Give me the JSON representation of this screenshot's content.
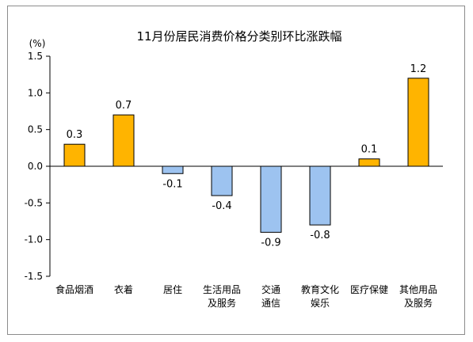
{
  "chart_data": {
    "type": "bar",
    "title": "11月份居民消费价格分类别环比涨跌幅",
    "ylabel": "(%)",
    "xlabel": "",
    "ylim": [
      -1.5,
      1.5
    ],
    "yticks": [
      "1.5",
      "1.0",
      "0.5",
      "0.0",
      "-0.5",
      "-1.0",
      "-1.5"
    ],
    "ytick_values": [
      1.5,
      1.0,
      0.5,
      0.0,
      -0.5,
      -1.0,
      -1.5
    ],
    "grid": false,
    "categories": [
      [
        "食品烟酒"
      ],
      [
        "衣着"
      ],
      [
        "居住"
      ],
      [
        "生活用品",
        "及服务"
      ],
      [
        "交通",
        "通信"
      ],
      [
        "教育文化",
        "娱乐"
      ],
      [
        "医疗保健"
      ],
      [
        "其他用品",
        "及服务"
      ]
    ],
    "values": [
      0.3,
      0.7,
      -0.1,
      -0.4,
      -0.9,
      -0.8,
      0.1,
      1.2
    ],
    "data_labels": [
      "0.3",
      "0.7",
      "-0.1",
      "-0.4",
      "-0.9",
      "-0.8",
      "0.1",
      "1.2"
    ],
    "colors": {
      "positive": "#FFB400",
      "negative": "#9DC3F0",
      "bar_outline": "#000000",
      "axis": "#000000",
      "frame": "#8c8c8c"
    }
  }
}
